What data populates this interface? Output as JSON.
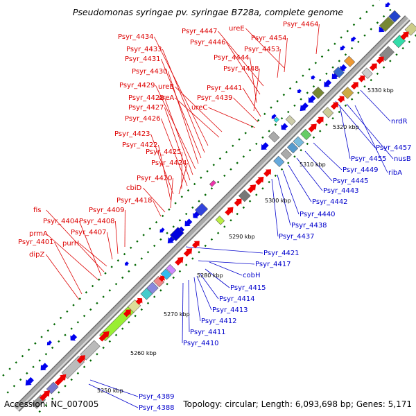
{
  "title": "Pseudomonas syringae pv. syringae B728a, complete genome",
  "footer": {
    "accession": "Accession: NC_007005",
    "topology": "Topology: circular; Length: 6,093,698 bp; Genes: 5,171"
  },
  "colors": {
    "backbone": "#a9a9a9",
    "forward_label": "#dd0000",
    "reverse_label": "#0000cc",
    "forward_arrow": "#ee0000",
    "reverse_arrow": "#0000ee",
    "tick": "#006600"
  },
  "kbp_markers": [
    "5250 kbp",
    "5260 kbp",
    "5270 kbp",
    "5280 kbp",
    "5290 kbp",
    "5300 kbp",
    "5310 kbp",
    "5320 kbp",
    "5330 kbp"
  ],
  "forward_labels": [
    "Psyr_4464",
    "ureE",
    "Psyr_4454",
    "Psyr_4453",
    "Psyr_4447",
    "Psyr_4446",
    "Psyr_4444",
    "Psyr_4448",
    "Psyr_4434",
    "Psyr_4433",
    "Psyr_4431",
    "Psyr_4430",
    "ureB",
    "ureA",
    "Psyr_4441",
    "Psyr_4439",
    "ureC",
    "Psyr_4429",
    "Psyr_4428",
    "Psyr_4427",
    "Psyr_4426",
    "Psyr_4423",
    "Psyr_4422",
    "Psyr_4425",
    "Psyr_4424",
    "Psyr_4420",
    "cbiD",
    "Psyr_4418",
    "Psyr_4409",
    "fis",
    "Psyr_4404",
    "Psyr_4408",
    "Psyr_4407",
    "prmA",
    "purH",
    "Psyr_4401",
    "dipZ"
  ],
  "reverse_labels": [
    "Psyr_4389",
    "Psyr_4388",
    "Psyr_4410",
    "Psyr_4411",
    "Psyr_4412",
    "Psyr_4413",
    "Psyr_4414",
    "Psyr_4415",
    "cobH",
    "Psyr_4417",
    "Psyr_4421",
    "Psyr_4437",
    "Psyr_4438",
    "Psyr_4440",
    "Psyr_4442",
    "Psyr_4443",
    "Psyr_4445",
    "Psyr_4449",
    "ribA",
    "nusB",
    "Psyr_4455",
    "Psyr_4457",
    "nrdR"
  ]
}
